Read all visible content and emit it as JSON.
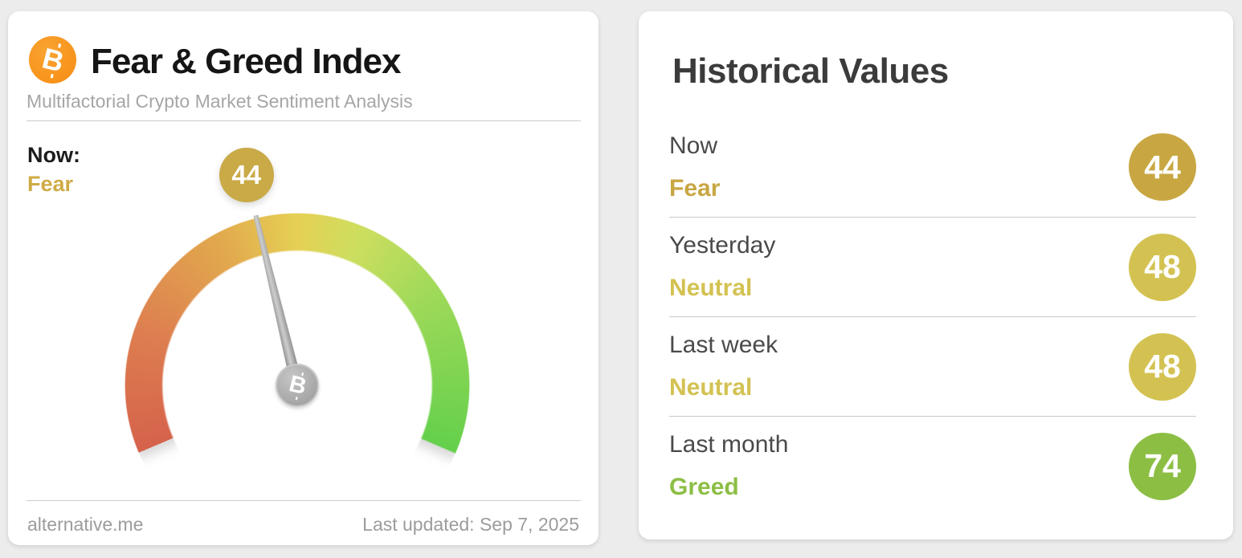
{
  "page": {
    "background": "#ececec"
  },
  "gauge_card": {
    "icon": "bitcoin-icon",
    "icon_color": "#f7931a",
    "title": "Fear & Greed Index",
    "subtitle": "Multifactorial Crypto Market Sentiment Analysis",
    "now_label": "Now:",
    "now_classification": "Fear",
    "now_classification_color": "#cfab45",
    "value": "44",
    "value_badge_color": "#c9aa47",
    "footer_left": "alternative.me",
    "footer_right": "Last updated: Sep 7, 2025",
    "gauge": {
      "min": 0,
      "max": 100,
      "value": 44,
      "sweep_deg": 226,
      "needle_color": "#9e9e9e",
      "stops": [
        {
          "at": 0,
          "color": "#d5624b"
        },
        {
          "at": 18,
          "color": "#dd7d50"
        },
        {
          "at": 38,
          "color": "#e2aa4e"
        },
        {
          "at": 50,
          "color": "#e5d054"
        },
        {
          "at": 60,
          "color": "#cdde5f"
        },
        {
          "at": 75,
          "color": "#9ed959"
        },
        {
          "at": 100,
          "color": "#64d04b"
        }
      ]
    }
  },
  "historical_card": {
    "title": "Historical Values",
    "rows": [
      {
        "label": "Now",
        "classification": "Fear",
        "value": "44",
        "color": "#c8a743"
      },
      {
        "label": "Yesterday",
        "classification": "Neutral",
        "value": "48",
        "color": "#d3c252"
      },
      {
        "label": "Last week",
        "classification": "Neutral",
        "value": "48",
        "color": "#d3c252"
      },
      {
        "label": "Last month",
        "classification": "Greed",
        "value": "74",
        "color": "#8cbe44"
      }
    ]
  },
  "chart_data": {
    "type": "gauge",
    "title": "Fear & Greed Index",
    "min": 0,
    "max": 100,
    "value": 44,
    "classification": "Fear",
    "scale_colors": [
      "#d5624b",
      "#e2aa4e",
      "#e5d054",
      "#cdde5f",
      "#64d04b"
    ],
    "historical": [
      {
        "label": "Now",
        "value": 44,
        "classification": "Fear"
      },
      {
        "label": "Yesterday",
        "value": 48,
        "classification": "Neutral"
      },
      {
        "label": "Last week",
        "value": 48,
        "classification": "Neutral"
      },
      {
        "label": "Last month",
        "value": 74,
        "classification": "Greed"
      }
    ]
  }
}
